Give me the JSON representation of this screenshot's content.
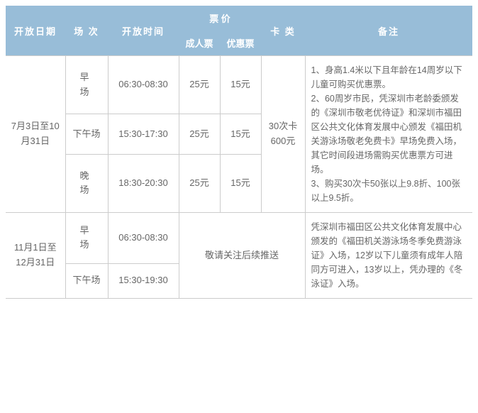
{
  "header": {
    "date": "开放日期",
    "session": "场 次",
    "time": "开放时间",
    "price": "票 价",
    "adult": "成人票",
    "discount": "优惠票",
    "card": "卡 类",
    "notes": "备注"
  },
  "periods": [
    {
      "date_range": "7月3日至10月31日",
      "card": "30次卡600元",
      "notes": "1、身高1.4米以下且年龄在14周岁以下儿童可购买优惠票。\n2、60周岁市民，凭深圳市老龄委颁发的《深圳市敬老优待证》和深圳市福田区公共文化体育发展中心颁发《福田机关游泳场敬老免费卡》早场免费入场，其它时间段进场需购买优惠票方可进场。\n3、购买30次卡50张以上9.8折、100张以上9.5折。",
      "rows": [
        {
          "session": "早 场",
          "time": "06:30-08:30",
          "adult": "25元",
          "discount": "15元"
        },
        {
          "session": "下午场",
          "time": "15:30-17:30",
          "adult": "25元",
          "discount": "15元"
        },
        {
          "session": "晚 场",
          "time": "18:30-20:30",
          "adult": "25元",
          "discount": "15元"
        }
      ]
    },
    {
      "date_range": "11月1日至12月31日",
      "pending": "敬请关注后续推送",
      "notes": "凭深圳市福田区公共文化体育发展中心颁发的《福田机关游泳场冬季免费游泳证》入场，12岁以下儿童须有成年人陪同方可进入，13岁以上，凭办理的《冬泳证》入场。",
      "rows": [
        {
          "session": "早 场",
          "time": "06:30-08:30"
        },
        {
          "session": "下午场",
          "time": "15:30-19:30"
        }
      ]
    }
  ]
}
